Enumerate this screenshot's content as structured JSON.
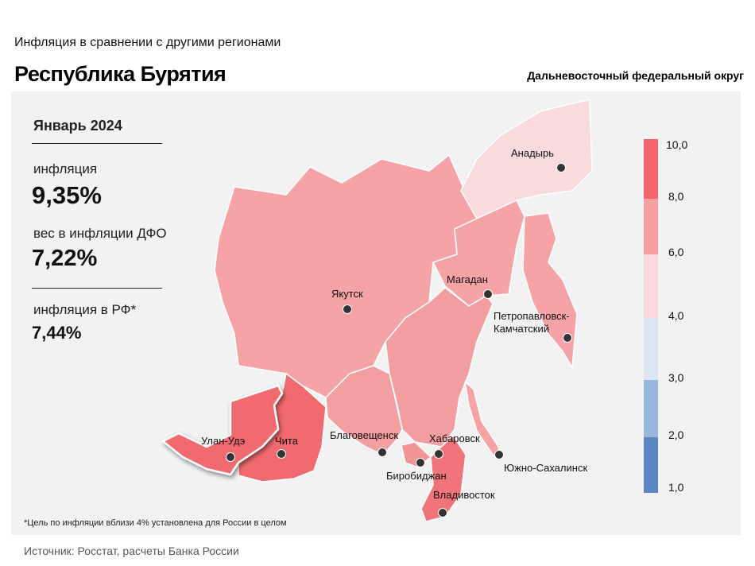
{
  "header": {
    "subtitle": "Инфляция в сравнении с другими регионами",
    "title": "Республика Бурятия",
    "district": "Дальневосточный федеральный округ"
  },
  "stats": {
    "month": "Январь 2024",
    "inflation_label": "инфляция",
    "inflation_value": "9,35%",
    "weight_label": "вес в инфляции ДФО",
    "weight_value": "7,22%",
    "rf_label": "инфляция в РФ*",
    "rf_value": "7,44%"
  },
  "footnote": "*Цель по инфляции вблизи 4% установлена для России в целом",
  "source": "Источник: Росстат, расчеты Банка России",
  "legend": {
    "ticks": [
      "10,0",
      "8,0",
      "6,0",
      "4,0",
      "3,0",
      "2,0",
      "1,0"
    ],
    "bins": [
      {
        "from": 8,
        "to": 10,
        "color": "#f4666b"
      },
      {
        "from": 6,
        "to": 8,
        "color": "#f5a0a3"
      },
      {
        "from": 4,
        "to": 6,
        "color": "#f9d9dc"
      },
      {
        "from": 3,
        "to": 4,
        "color": "#dbe5f3"
      },
      {
        "from": 2,
        "to": 3,
        "color": "#98b6db"
      },
      {
        "from": 1,
        "to": 2,
        "color": "#5b88c4"
      }
    ]
  },
  "cities": [
    "Анадырь",
    "Якутск",
    "Магадан",
    "Петропавловск-",
    "Камчатский",
    "Улан-Удэ",
    "Чита",
    "Благовещенск",
    "Хабаровск",
    "Биробиджан",
    "Южно-Сахалинск",
    "Владивосток"
  ]
}
